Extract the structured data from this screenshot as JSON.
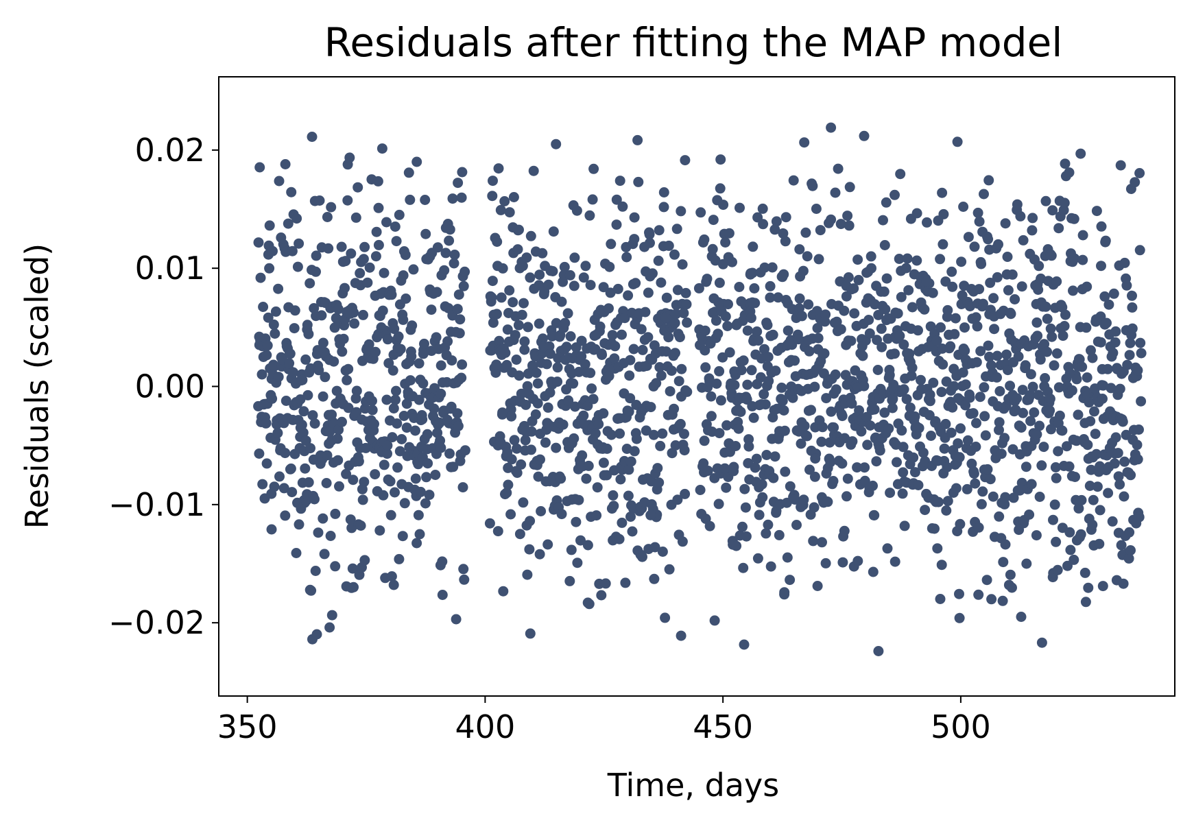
{
  "chart_data": {
    "type": "scatter",
    "title": "Residuals after fitting the MAP model",
    "xlabel": "Time, days",
    "ylabel": "Residuals (scaled)",
    "xlim": [
      344,
      545
    ],
    "ylim": [
      -0.0262,
      0.0262
    ],
    "x_ticks": [
      350,
      400,
      450,
      500
    ],
    "x_tick_labels": [
      "350",
      "400",
      "450",
      "500"
    ],
    "y_ticks": [
      -0.02,
      -0.01,
      0.0,
      0.01,
      0.02
    ],
    "y_tick_labels": [
      "−0.02",
      "−0.01",
      "0.00",
      "0.01",
      "0.02"
    ],
    "grid": false,
    "legend": "none",
    "marker_color": "#3f5172",
    "series": [
      {
        "data_segments": [
          [
            352.3,
            395.8
          ],
          [
            401.0,
            442.5
          ],
          [
            445.0,
            538.0
          ]
        ],
        "sampling_interval_days": 0.0204,
        "residual_range": [
          -0.0238,
          0.0238
        ],
        "x": [
          352.5,
          355.1,
          358.0,
          361.2,
          364.4,
          367.3,
          370.9,
          374.2,
          377.6,
          380.8,
          384.1,
          387.5,
          390.7,
          393.9,
          401.6,
          404.8,
          408.3,
          411.5,
          414.9,
          418.2,
          421.6,
          424.9,
          428.3,
          431.4,
          434.8,
          438.0,
          441.2,
          446.1,
          449.5,
          452.8,
          456.2,
          459.4,
          462.9,
          466.1,
          469.4,
          472.7,
          476.0,
          479.3,
          482.7,
          486.1,
          489.4,
          492.8,
          496.0,
          499.3,
          502.7,
          506.0,
          509.4,
          512.7,
          516.0,
          519.4,
          522.8,
          526.1,
          529.5,
          532.8,
          536.1
        ],
        "y": [
          0.0042,
          -0.0121,
          0.0188,
          -0.0035,
          0.0097,
          -0.0204,
          0.0063,
          -0.0087,
          0.0151,
          -0.0168,
          0.0021,
          0.0129,
          -0.0052,
          -0.0197,
          0.0174,
          -0.0069,
          0.0038,
          -0.0142,
          0.0205,
          0.0011,
          -0.0183,
          0.0084,
          -0.0027,
          0.0143,
          -0.0109,
          0.0058,
          -0.0211,
          -0.0046,
          0.0192,
          -0.0135,
          0.0071,
          0.0017,
          -0.0176,
          0.0116,
          -0.0061,
          0.0219,
          -0.0093,
          0.0034,
          -0.0224,
          0.0162,
          -0.0018,
          0.0089,
          -0.0151,
          0.0207,
          -0.0072,
          0.0025,
          0.0138,
          -0.0195,
          0.0054,
          -0.0113,
          0.0181,
          -0.0031,
          0.0102,
          -0.0164,
          0.0049
        ]
      }
    ]
  }
}
